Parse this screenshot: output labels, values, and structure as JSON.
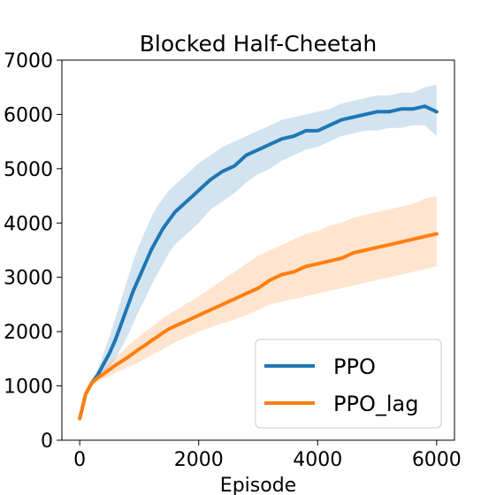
{
  "chart_data": {
    "type": "line",
    "title": "Blocked Half-Cheetah",
    "xlabel": "Episode",
    "ylabel": "",
    "xlim": [
      -300,
      6300
    ],
    "ylim": [
      0,
      7000
    ],
    "xticks": [
      0,
      2000,
      4000,
      6000
    ],
    "xtick_labels": [
      "0",
      "2000",
      "4000",
      "6000"
    ],
    "yticks": [
      0,
      1000,
      2000,
      3000,
      4000,
      5000,
      6000,
      7000
    ],
    "ytick_labels": [
      "0",
      "1000",
      "2000",
      "3000",
      "4000",
      "5000",
      "6000",
      "7000"
    ],
    "grid": false,
    "legend_position": "lower-right",
    "x": [
      0,
      100,
      200,
      300,
      400,
      500,
      600,
      700,
      800,
      900,
      1000,
      1100,
      1200,
      1300,
      1400,
      1500,
      1600,
      1700,
      1800,
      1900,
      2000,
      2200,
      2400,
      2600,
      2800,
      3000,
      3200,
      3400,
      3600,
      3800,
      4000,
      4200,
      4400,
      4600,
      4800,
      5000,
      5200,
      5400,
      5600,
      5800,
      6000
    ],
    "series": [
      {
        "name": "PPO",
        "color": "#1f77b4",
        "values": [
          400,
          850,
          1050,
          1200,
          1400,
          1600,
          1850,
          2150,
          2450,
          2750,
          3000,
          3250,
          3500,
          3700,
          3900,
          4050,
          4200,
          4300,
          4400,
          4500,
          4600,
          4800,
          4950,
          5050,
          5250,
          5350,
          5450,
          5550,
          5600,
          5700,
          5700,
          5800,
          5900,
          5950,
          6000,
          6050,
          6050,
          6100,
          6100,
          6150,
          6050
        ],
        "upper": [
          420,
          880,
          1100,
          1300,
          1600,
          1900,
          2250,
          2600,
          2950,
          3300,
          3600,
          3850,
          4100,
          4300,
          4450,
          4600,
          4700,
          4800,
          4900,
          5000,
          5100,
          5250,
          5400,
          5500,
          5600,
          5700,
          5800,
          5900,
          5950,
          6000,
          6050,
          6100,
          6200,
          6250,
          6300,
          6350,
          6350,
          6400,
          6400,
          6500,
          6550
        ],
        "lower": [
          380,
          820,
          1000,
          1120,
          1250,
          1350,
          1500,
          1700,
          1900,
          2150,
          2400,
          2600,
          2850,
          3050,
          3250,
          3450,
          3600,
          3700,
          3800,
          3900,
          4000,
          4250,
          4400,
          4550,
          4750,
          4900,
          5000,
          5150,
          5250,
          5350,
          5400,
          5500,
          5600,
          5650,
          5700,
          5700,
          5750,
          5750,
          5800,
          5800,
          5600
        ]
      },
      {
        "name": "PPO_lag",
        "color": "#ff7f0e",
        "values": [
          400,
          850,
          1050,
          1150,
          1220,
          1300,
          1380,
          1450,
          1520,
          1600,
          1680,
          1750,
          1830,
          1900,
          1980,
          2050,
          2100,
          2150,
          2200,
          2250,
          2300,
          2400,
          2500,
          2600,
          2700,
          2800,
          2950,
          3050,
          3100,
          3200,
          3250,
          3300,
          3350,
          3450,
          3500,
          3550,
          3600,
          3650,
          3700,
          3750,
          3800
        ],
        "upper": [
          420,
          880,
          1100,
          1220,
          1320,
          1420,
          1520,
          1620,
          1720,
          1820,
          1920,
          2000,
          2080,
          2160,
          2250,
          2320,
          2380,
          2450,
          2520,
          2580,
          2650,
          2800,
          2950,
          3100,
          3250,
          3400,
          3500,
          3600,
          3700,
          3800,
          3850,
          3950,
          4000,
          4100,
          4150,
          4200,
          4250,
          4300,
          4350,
          4450,
          4500
        ],
        "lower": [
          380,
          820,
          1000,
          1080,
          1130,
          1180,
          1240,
          1290,
          1340,
          1390,
          1440,
          1500,
          1560,
          1620,
          1680,
          1740,
          1800,
          1850,
          1900,
          1950,
          2000,
          2080,
          2150,
          2220,
          2300,
          2400,
          2500,
          2550,
          2600,
          2650,
          2700,
          2750,
          2800,
          2850,
          2900,
          2950,
          3000,
          3050,
          3100,
          3150,
          3200
        ]
      }
    ]
  }
}
